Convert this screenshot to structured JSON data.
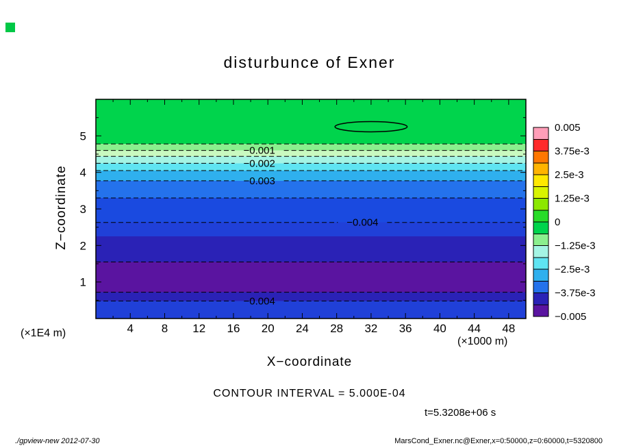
{
  "title": "disturbunce of Exner",
  "axes": {
    "x_label": "X−coordinate",
    "z_label": "Z−coordinate",
    "x_unit_label": "(×1000 m)",
    "z_unit_label": "(×1E4 m)"
  },
  "annotations": {
    "contour_interval": "CONTOUR INTERVAL = 5.000E-04",
    "time": "t=5.3208e+06 s"
  },
  "footer": {
    "left": "./gpview-new  2012-07-30",
    "right": "MarsCond_Exner.nc@Exner,x=0:50000,z=0:60000,t=5320800"
  },
  "corner_marker_color": "#00c846",
  "chart_data": {
    "type": "heatmap",
    "title": "disturbunce of Exner",
    "xlabel": "X−coordinate (×1000 m)",
    "ylabel": "Z−coordinate (×1E4 m)",
    "xlim": [
      0,
      50
    ],
    "zlim": [
      0,
      6
    ],
    "x_ticks": [
      "4",
      "8",
      "12",
      "16",
      "20",
      "24",
      "28",
      "32",
      "36",
      "40",
      "44",
      "48"
    ],
    "z_ticks": [
      "1",
      "2",
      "3",
      "4",
      "5"
    ],
    "contour_interval_value": 0.0005,
    "time_seconds": "5.3208e+06",
    "field_description": "Exner function disturbance: horizontally uniform filled-contour bands; near 0 at top, minimum about −0.0048 near z=1×1E4 m, rising to about −0.0037 at the surface; small closed positive contour near x=32, z=5.25",
    "profile": {
      "z": [
        6.0,
        5.5,
        5.0,
        4.78,
        4.6,
        4.25,
        3.77,
        3.3,
        2.63,
        2.0,
        1.55,
        1.0,
        0.72,
        0.48,
        0.0
      ],
      "value": [
        0.0002,
        0.0,
        -0.0003,
        -0.0005,
        -0.001,
        -0.002,
        -0.003,
        -0.0035,
        -0.004,
        -0.0043,
        -0.0045,
        -0.0048,
        -0.0045,
        -0.004,
        -0.0037
      ]
    },
    "bands": [
      {
        "z_top": 6.0,
        "z_bottom": 4.78,
        "color": "#00d44c"
      },
      {
        "z_top": 4.78,
        "z_bottom": 4.6,
        "color": "#8bef8e"
      },
      {
        "z_top": 4.6,
        "z_bottom": 4.44,
        "color": "#c9f9c0"
      },
      {
        "z_top": 4.44,
        "z_bottom": 4.25,
        "color": "#a4f4e4"
      },
      {
        "z_top": 4.25,
        "z_bottom": 4.05,
        "color": "#5fe4f2"
      },
      {
        "z_top": 4.05,
        "z_bottom": 3.77,
        "color": "#2fb0ee"
      },
      {
        "z_top": 3.77,
        "z_bottom": 3.3,
        "color": "#2472ec"
      },
      {
        "z_top": 3.3,
        "z_bottom": 2.63,
        "color": "#1a4ae0"
      },
      {
        "z_top": 2.63,
        "z_bottom": 2.25,
        "color": "#2040d8"
      },
      {
        "z_top": 2.25,
        "z_bottom": 1.55,
        "color": "#2a22b6"
      },
      {
        "z_top": 1.55,
        "z_bottom": 0.72,
        "color": "#5a14a0"
      },
      {
        "z_top": 0.72,
        "z_bottom": 0.48,
        "color": "#2a22b6"
      },
      {
        "z_top": 0.48,
        "z_bottom": 0.0,
        "color": "#2040d8"
      }
    ],
    "contours": [
      {
        "z": 4.78,
        "value": -0.0005
      },
      {
        "z": 4.6,
        "value": -0.001,
        "label": "−0.001",
        "label_x": 19
      },
      {
        "z": 4.44,
        "value": -0.0015
      },
      {
        "z": 4.25,
        "value": -0.002,
        "label": "−0.002",
        "label_x": 19
      },
      {
        "z": 4.05,
        "value": -0.0025
      },
      {
        "z": 3.77,
        "value": -0.003,
        "label": "−0.003",
        "label_x": 19
      },
      {
        "z": 3.3,
        "value": -0.0035
      },
      {
        "z": 2.63,
        "value": -0.004,
        "label": "−0.004",
        "label_x": 31
      },
      {
        "z": 1.55,
        "value": -0.0045
      },
      {
        "z": 0.72,
        "value": -0.0045
      },
      {
        "z": 0.48,
        "value": -0.004,
        "label": "−0.004",
        "label_x": 19
      }
    ],
    "closed_contour": {
      "cx": 32,
      "cz": 5.25,
      "rx": 4.2,
      "rz": 0.14,
      "value": 0.0
    },
    "colorbar": {
      "labels": [
        "0.005",
        "3.75e-3",
        "2.5e-3",
        "1.25e-3",
        "0",
        "−1.25e-3",
        "−2.5e-3",
        "−3.75e-3",
        "−0.005"
      ],
      "colors": [
        "#ff9eb8",
        "#ff2a2a",
        "#ff7700",
        "#ffb400",
        "#ffe800",
        "#d8f400",
        "#8ce800",
        "#28dc28",
        "#00d44c",
        "#8bef8e",
        "#a4f4e4",
        "#5fe4f2",
        "#2fb0ee",
        "#2472ec",
        "#2a22b6",
        "#5a14a0"
      ]
    }
  }
}
